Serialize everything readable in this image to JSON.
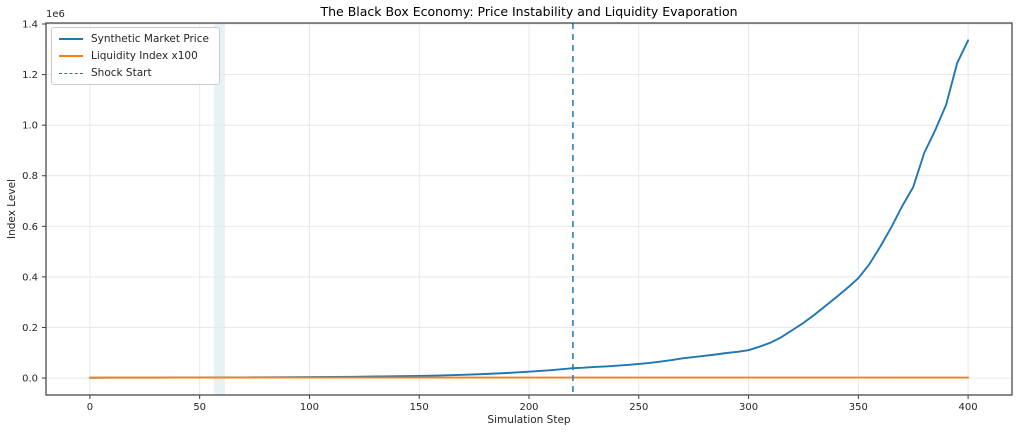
{
  "chart_data": {
    "type": "line",
    "title": "The Black Box Economy: Price Instability and Liquidity Evaporation",
    "xlabel": "Simulation Step",
    "ylabel": "Index Level",
    "y_offset_label": "1e6",
    "x_ticks": [
      0,
      50,
      100,
      150,
      200,
      250,
      300,
      350,
      400
    ],
    "y_ticks": [
      0.0,
      0.2,
      0.4,
      0.6,
      0.8,
      1.0,
      1.2,
      1.4
    ],
    "y_tick_scale": 1000000,
    "xlim": [
      -20,
      420
    ],
    "ylim": [
      -67000,
      1404000
    ],
    "grid": true,
    "legend_position": "upper left",
    "colors": {
      "price": "#1f77b4",
      "liquidity": "#ff7f0e",
      "shock": "#1f77b4",
      "band": "#9ecae1",
      "grid": "#e6e6e6",
      "spine": "#3d3d3d",
      "tick_text": "#262626"
    },
    "series": [
      {
        "name": "Synthetic Market Price",
        "color": "#1f77b4",
        "style": "solid",
        "x": [
          0,
          10,
          20,
          30,
          40,
          50,
          57,
          60,
          62,
          70,
          80,
          90,
          100,
          110,
          120,
          130,
          140,
          150,
          160,
          170,
          180,
          190,
          200,
          210,
          220,
          225,
          230,
          235,
          240,
          245,
          250,
          255,
          260,
          265,
          270,
          275,
          280,
          285,
          290,
          295,
          300,
          305,
          310,
          315,
          320,
          325,
          330,
          335,
          340,
          345,
          350,
          355,
          360,
          365,
          370,
          375,
          380,
          385,
          390,
          395,
          400
        ],
        "values": [
          1200,
          1300,
          1450,
          1600,
          1750,
          1950,
          2100,
          2200,
          2300,
          2600,
          2900,
          3300,
          3800,
          4400,
          5100,
          6000,
          7200,
          8700,
          10500,
          13000,
          16000,
          20000,
          25000,
          31000,
          39000,
          41000,
          44000,
          46000,
          49000,
          52000,
          56000,
          60000,
          65000,
          71000,
          78000,
          83000,
          88000,
          93000,
          99000,
          104000,
          110000,
          124000,
          140000,
          162000,
          190000,
          218000,
          250000,
          285000,
          320000,
          356000,
          395000,
          450000,
          520000,
          596000,
          680000,
          755000,
          890000,
          980000,
          1080000,
          1245000,
          1335000
        ]
      },
      {
        "name": "Liquidity Index x100",
        "color": "#ff7f0e",
        "style": "solid",
        "x": [
          0,
          400
        ],
        "values": [
          2000,
          2000
        ]
      }
    ],
    "annotations": {
      "shock_line": {
        "label": "Shock Start",
        "x": 220,
        "color": "#1f77b4",
        "style": "dashed"
      },
      "highlight_band": {
        "x_start": 56.5,
        "x_end": 61.5,
        "color": "#9ecae1",
        "opacity": 0.25
      }
    }
  }
}
